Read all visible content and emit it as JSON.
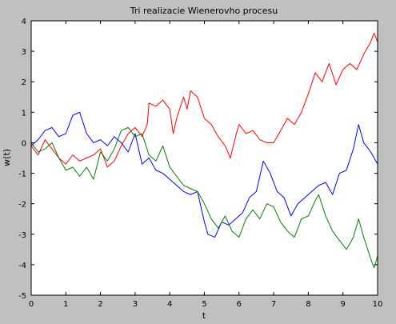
{
  "colors": {
    "figure_background": "#c0c0c0",
    "plot_background": "#ffffff",
    "axis": "#000000"
  },
  "chart_data": {
    "type": "line",
    "title": "Tri realizacie Wienerovho procesu",
    "xlabel": "t",
    "ylabel": "w(t)",
    "xlim": [
      0,
      10
    ],
    "ylim": [
      -5,
      4
    ],
    "xticks": [
      0,
      1,
      2,
      3,
      4,
      5,
      6,
      7,
      8,
      9,
      10
    ],
    "yticks": [
      4,
      3,
      2,
      1,
      0,
      -1,
      -2,
      -3,
      -4,
      -5
    ],
    "grid": false,
    "legend": "none",
    "series": [
      {
        "color": "#ff0000",
        "x": [
          0,
          0.2,
          0.4,
          0.6,
          0.8,
          1.0,
          1.2,
          1.4,
          1.6,
          1.8,
          2.0,
          2.2,
          2.4,
          2.6,
          2.8,
          3.0,
          3.2,
          3.35,
          3.4,
          3.6,
          3.8,
          4.0,
          4.1,
          4.2,
          4.4,
          4.5,
          4.6,
          4.8,
          5.0,
          5.2,
          5.4,
          5.6,
          5.75,
          5.9,
          6.0,
          6.2,
          6.4,
          6.6,
          6.8,
          7.0,
          7.2,
          7.4,
          7.6,
          7.8,
          8.0,
          8.2,
          8.4,
          8.6,
          8.8,
          9.0,
          9.2,
          9.4,
          9.6,
          9.8,
          9.9,
          10.0
        ],
        "y": [
          -0.1,
          -0.4,
          0.1,
          -0.2,
          -0.5,
          -0.7,
          -0.4,
          -0.6,
          -0.5,
          -0.4,
          -0.2,
          -0.8,
          -0.6,
          -0.1,
          0.3,
          0.5,
          0.2,
          0.6,
          1.3,
          1.2,
          1.4,
          1.1,
          0.3,
          0.8,
          1.5,
          1.1,
          1.7,
          1.5,
          0.8,
          0.6,
          0.2,
          -0.1,
          -0.5,
          0.2,
          0.6,
          0.3,
          0.4,
          0.1,
          0.0,
          0.0,
          0.4,
          0.8,
          0.6,
          1.0,
          1.6,
          2.3,
          2.0,
          2.6,
          1.9,
          2.4,
          2.6,
          2.4,
          2.9,
          3.3,
          3.6,
          3.3
        ]
      },
      {
        "color": "#0000ff",
        "x": [
          0,
          0.2,
          0.4,
          0.6,
          0.8,
          1.0,
          1.2,
          1.4,
          1.6,
          1.8,
          2.0,
          2.2,
          2.4,
          2.6,
          2.8,
          3.0,
          3.2,
          3.4,
          3.6,
          3.8,
          4.0,
          4.2,
          4.4,
          4.6,
          4.8,
          5.0,
          5.1,
          5.3,
          5.5,
          5.7,
          5.9,
          6.1,
          6.3,
          6.5,
          6.7,
          6.9,
          7.1,
          7.3,
          7.5,
          7.7,
          7.9,
          8.1,
          8.3,
          8.5,
          8.7,
          8.9,
          9.1,
          9.3,
          9.45,
          9.6,
          9.8,
          10.0
        ],
        "y": [
          -0.1,
          0.1,
          0.4,
          0.5,
          0.2,
          0.3,
          0.9,
          1.0,
          0.3,
          0.0,
          0.1,
          -0.1,
          0.2,
          0.0,
          -0.3,
          0.3,
          -0.7,
          -0.5,
          -0.9,
          -1.0,
          -1.2,
          -1.4,
          -1.6,
          -1.7,
          -1.6,
          -2.6,
          -3.0,
          -3.1,
          -2.6,
          -2.7,
          -2.5,
          -2.3,
          -1.8,
          -1.6,
          -0.6,
          -1.0,
          -1.6,
          -1.8,
          -2.4,
          -2.0,
          -1.8,
          -1.6,
          -1.4,
          -1.3,
          -1.7,
          -1.0,
          -0.9,
          -0.2,
          0.6,
          0.0,
          -0.3,
          -0.7
        ]
      },
      {
        "color": "#008000",
        "x": [
          0,
          0.2,
          0.4,
          0.6,
          0.8,
          1.0,
          1.2,
          1.4,
          1.6,
          1.8,
          2.0,
          2.2,
          2.4,
          2.6,
          2.8,
          3.0,
          3.2,
          3.4,
          3.6,
          3.8,
          4.0,
          4.2,
          4.4,
          4.6,
          4.8,
          5.0,
          5.2,
          5.4,
          5.6,
          5.8,
          6.0,
          6.2,
          6.4,
          6.6,
          6.8,
          7.0,
          7.2,
          7.4,
          7.6,
          7.8,
          8.0,
          8.2,
          8.3,
          8.5,
          8.7,
          8.9,
          9.1,
          9.3,
          9.45,
          9.6,
          9.8,
          9.9,
          10.0
        ],
        "y": [
          0.0,
          -0.3,
          -0.2,
          0.0,
          -0.5,
          -0.9,
          -0.8,
          -1.1,
          -0.8,
          -1.2,
          -0.3,
          -0.6,
          -0.2,
          0.4,
          0.5,
          0.2,
          0.3,
          -0.4,
          -0.6,
          -0.1,
          -0.8,
          -1.1,
          -1.4,
          -1.5,
          -1.6,
          -2.0,
          -2.5,
          -2.8,
          -2.4,
          -2.9,
          -3.1,
          -2.5,
          -2.2,
          -2.5,
          -2.0,
          -2.1,
          -2.6,
          -2.9,
          -3.1,
          -2.5,
          -2.4,
          -1.9,
          -1.7,
          -2.4,
          -2.9,
          -3.2,
          -3.5,
          -3.1,
          -2.5,
          -3.1,
          -3.8,
          -4.1,
          -3.7
        ]
      }
    ]
  }
}
